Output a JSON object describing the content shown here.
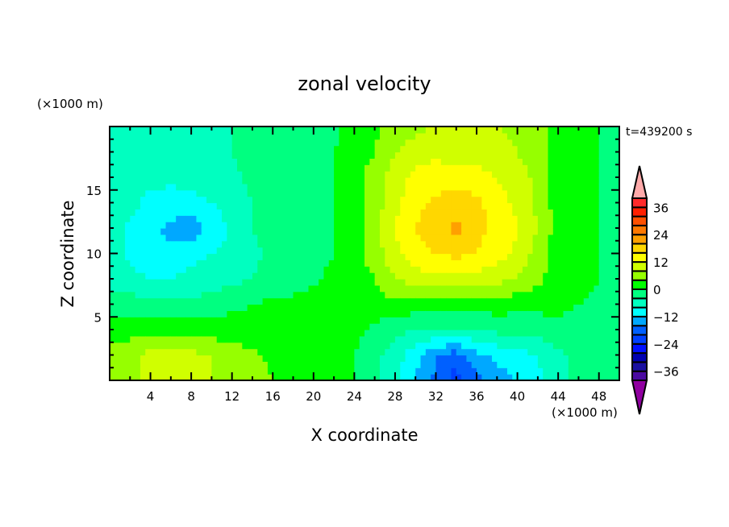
{
  "chart_data": {
    "type": "heatmap",
    "title": "zonal velocity",
    "xlabel": "X coordinate",
    "ylabel": "Z coordinate",
    "x_unit": "(×1000 m)",
    "y_unit": "(×1000 m)",
    "annotation": "t=439200 s",
    "xlim": [
      0,
      50
    ],
    "ylim": [
      0,
      20
    ],
    "x_ticks": [
      4,
      8,
      12,
      16,
      20,
      24,
      28,
      32,
      36,
      40,
      44,
      48
    ],
    "y_ticks": [
      5,
      10,
      15
    ],
    "grid": false,
    "x": [
      0,
      2,
      4,
      6,
      8,
      10,
      12,
      14,
      16,
      18,
      20,
      22,
      24,
      26,
      28,
      30,
      32,
      34,
      36,
      38,
      40,
      42,
      44,
      46,
      48,
      50
    ],
    "z_levels_y": [
      20,
      18,
      16,
      14,
      12,
      10,
      8,
      6,
      4,
      2,
      0
    ],
    "values": [
      [
        -6,
        -6,
        -6,
        -6,
        -6,
        -5,
        -4,
        -2,
        -2,
        -2,
        -2,
        -1,
        2,
        3,
        6,
        7,
        8,
        8,
        8,
        8,
        7,
        6,
        2,
        2,
        0,
        -2
      ],
      [
        -6,
        -6,
        -6,
        -6,
        -6,
        -5,
        -4,
        -2,
        -2,
        -2,
        -1,
        0,
        2,
        4,
        8,
        10,
        11,
        10,
        10,
        9,
        8,
        6,
        2,
        2,
        0,
        -2
      ],
      [
        -5,
        -6,
        -7,
        -7,
        -7,
        -6,
        -5,
        -3,
        -2,
        -2,
        -1,
        0,
        2,
        6,
        10,
        13,
        14,
        14,
        14,
        12,
        10,
        7,
        2,
        2,
        0,
        -2
      ],
      [
        -5,
        -7,
        -9,
        -10,
        -9,
        -8,
        -6,
        -4,
        -2,
        -2,
        -1,
        0,
        2,
        6,
        11,
        15,
        17,
        18,
        17,
        14,
        11,
        7,
        2,
        2,
        0,
        -2
      ],
      [
        -6,
        -9,
        -11,
        -13,
        -15,
        -11,
        -7,
        -4,
        -2,
        -2,
        -1,
        0,
        2,
        6,
        12,
        16,
        19,
        21,
        17,
        15,
        12,
        8,
        2,
        2,
        0,
        -2
      ],
      [
        -6,
        -9,
        -10,
        -11,
        -9,
        -8,
        -7,
        -5,
        -3,
        -2,
        -1,
        0,
        2,
        6,
        11,
        14,
        16,
        17,
        16,
        14,
        11,
        6,
        2,
        2,
        0,
        -2
      ],
      [
        -5,
        -7,
        -8,
        -8,
        -7,
        -6,
        -5,
        -4,
        -2,
        -2,
        -1,
        1,
        2,
        4,
        8,
        10,
        11,
        11,
        10,
        9,
        8,
        5,
        2,
        2,
        0,
        -2
      ],
      [
        -2,
        -2,
        -3,
        -3,
        -3,
        -2,
        -1,
        0,
        1,
        1,
        2,
        2,
        2,
        2,
        3,
        2,
        2,
        2,
        2,
        2,
        1,
        1,
        1,
        0,
        -1,
        -2
      ],
      [
        2,
        2,
        3,
        3,
        3,
        2,
        2,
        1,
        1,
        1,
        2,
        2,
        1,
        -1,
        -3,
        -4,
        -4,
        -4,
        -4,
        -3,
        -2,
        -2,
        -1,
        -2,
        -2,
        -2
      ],
      [
        6,
        7,
        9,
        10,
        9,
        8,
        6,
        5,
        3,
        3,
        1,
        2,
        0,
        -3,
        -6,
        -11,
        -16,
        -18,
        -13,
        -11,
        -10,
        -8,
        -5,
        -3,
        -3,
        -2
      ],
      [
        6,
        7,
        9,
        10,
        9,
        8,
        6,
        6,
        4,
        2,
        1,
        1,
        0,
        -3,
        -6,
        -12,
        -17,
        -22,
        -18,
        -14,
        -12,
        -9,
        -5,
        -3,
        -3,
        -2
      ]
    ],
    "colorbar": {
      "levels_min": -40,
      "levels_max": 40,
      "step": 4,
      "tick_labels": [
        "36",
        "24",
        "12",
        "0",
        "−12",
        "−24",
        "−36"
      ],
      "tick_values": [
        36,
        24,
        12,
        0,
        -12,
        -24,
        -36
      ],
      "colors": [
        "#4a0aa0",
        "#1a10a0",
        "#0000b0",
        "#0010ff",
        "#0040ff",
        "#0060ff",
        "#00a8ff",
        "#00ffff",
        "#00ffc0",
        "#00ff80",
        "#00ff00",
        "#96ff00",
        "#d0ff00",
        "#ffff00",
        "#ffd700",
        "#ffa000",
        "#ff7800",
        "#ff5000",
        "#ff2000",
        "#ff2a2a"
      ],
      "over_color": "#ffaaaa",
      "under_color": "#9000a0"
    }
  }
}
